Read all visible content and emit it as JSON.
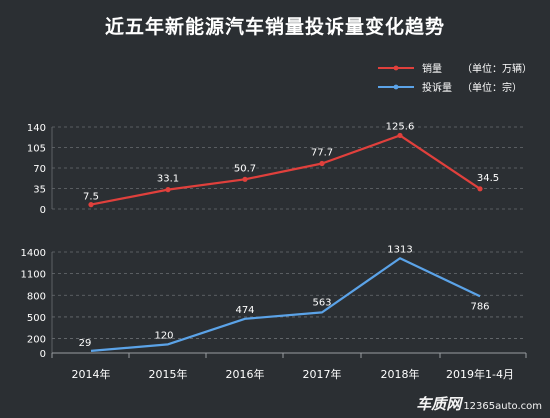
{
  "title": "近五年新能源汽车销量投诉量变化趋势",
  "watermark": {
    "brand": "车质网",
    "url": "12365auto.com"
  },
  "colors": {
    "background": "#2b2f33",
    "sales": "#e0403c",
    "complaints": "#5ba3e8",
    "grid": "#6a6e72",
    "text": "#ffffff"
  },
  "chart_data": [
    {
      "type": "line",
      "categories": [
        "2014年",
        "2015年",
        "2016年",
        "2017年",
        "2018年",
        "2019年1-4月"
      ],
      "series": [
        {
          "name": "销量",
          "unit": "（单位：万辆）",
          "values": [
            7.5,
            33.1,
            50.7,
            77.7,
            125.6,
            34.5
          ]
        }
      ],
      "y_ticks": [
        0,
        35,
        70,
        105,
        140
      ],
      "ylim": [
        0,
        140
      ],
      "legend_position": "top-right",
      "grid": true,
      "markers": true
    },
    {
      "type": "line",
      "categories": [
        "2014年",
        "2015年",
        "2016年",
        "2017年",
        "2018年",
        "2019年1-4月"
      ],
      "series": [
        {
          "name": "投诉量",
          "unit": "（单位：宗）",
          "values": [
            29,
            120,
            474,
            563,
            1313,
            786
          ]
        }
      ],
      "y_ticks": [
        0,
        200,
        500,
        800,
        1100,
        1400
      ],
      "ylim": [
        0,
        1400
      ],
      "legend_position": "top-right",
      "grid": true,
      "markers": false
    }
  ]
}
